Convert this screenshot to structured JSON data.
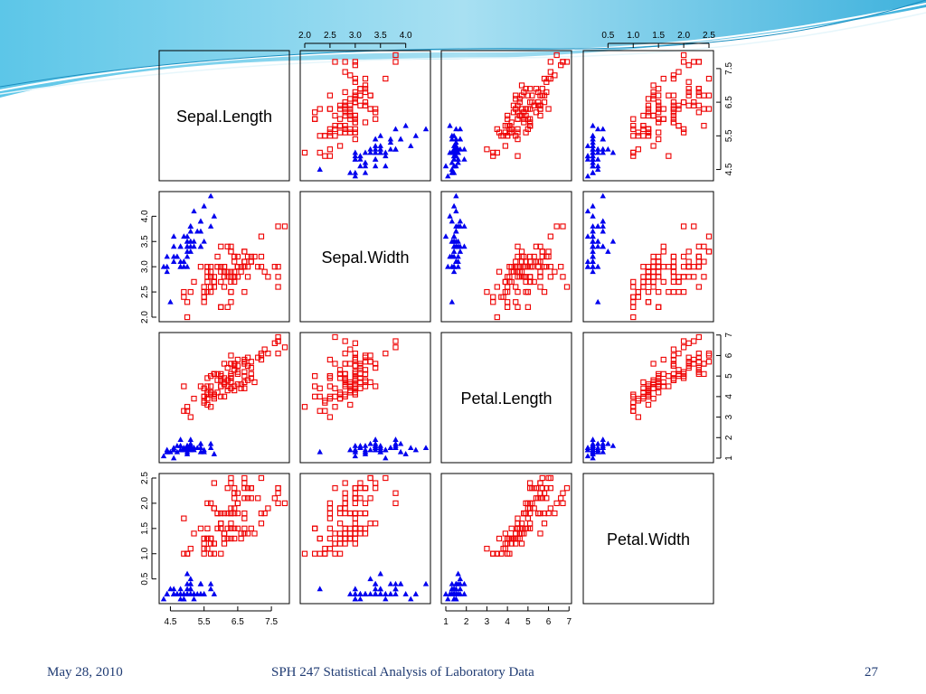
{
  "colors": {
    "setosa": "#0000ee",
    "other": "#ee0000",
    "footer": "#1f3b73",
    "accent": "#35b4dd"
  },
  "footer": {
    "date": "May 28, 2010",
    "title": "SPH 247 Statistical Analysis of Laboratory Data",
    "page": "27"
  },
  "chart_data": {
    "type": "scatter",
    "variables": [
      "Sepal.Length",
      "Sepal.Width",
      "Petal.Length",
      "Petal.Width"
    ],
    "ranges": [
      [
        4.3,
        7.9
      ],
      [
        2.0,
        4.4
      ],
      [
        1.0,
        6.9
      ],
      [
        0.1,
        2.5
      ]
    ],
    "ticks": [
      [
        "4.5",
        "5.5",
        "6.5",
        "7.5"
      ],
      [
        "2.0",
        "2.5",
        "3.0",
        "3.5",
        "4.0"
      ],
      [
        "1",
        "2",
        "3",
        "4",
        "5",
        "6",
        "7"
      ],
      [
        "0.5",
        "1.0",
        "1.5",
        "2.0",
        "2.5"
      ]
    ],
    "groups": [
      {
        "marker": "filled-triangle",
        "color": "#0000ee",
        "points": [
          [
            5.1,
            3.5,
            1.4,
            0.2
          ],
          [
            4.9,
            3.0,
            1.4,
            0.2
          ],
          [
            4.7,
            3.2,
            1.3,
            0.2
          ],
          [
            4.6,
            3.1,
            1.5,
            0.2
          ],
          [
            5.0,
            3.6,
            1.4,
            0.2
          ],
          [
            5.4,
            3.9,
            1.7,
            0.4
          ],
          [
            4.6,
            3.4,
            1.4,
            0.3
          ],
          [
            5.0,
            3.4,
            1.5,
            0.2
          ],
          [
            4.4,
            2.9,
            1.4,
            0.2
          ],
          [
            4.9,
            3.1,
            1.5,
            0.1
          ],
          [
            5.4,
            3.7,
            1.5,
            0.2
          ],
          [
            4.8,
            3.4,
            1.6,
            0.2
          ],
          [
            4.8,
            3.0,
            1.4,
            0.1
          ],
          [
            4.3,
            3.0,
            1.1,
            0.1
          ],
          [
            5.8,
            4.0,
            1.2,
            0.2
          ],
          [
            5.7,
            4.4,
            1.5,
            0.4
          ],
          [
            5.4,
            3.9,
            1.3,
            0.4
          ],
          [
            5.1,
            3.5,
            1.4,
            0.3
          ],
          [
            5.7,
            3.8,
            1.7,
            0.3
          ],
          [
            5.1,
            3.8,
            1.5,
            0.3
          ],
          [
            5.4,
            3.4,
            1.7,
            0.2
          ],
          [
            5.1,
            3.7,
            1.5,
            0.4
          ],
          [
            4.6,
            3.6,
            1.0,
            0.2
          ],
          [
            5.1,
            3.3,
            1.7,
            0.5
          ],
          [
            4.8,
            3.4,
            1.9,
            0.2
          ],
          [
            5.0,
            3.0,
            1.6,
            0.2
          ],
          [
            5.0,
            3.4,
            1.6,
            0.4
          ],
          [
            5.2,
            3.5,
            1.5,
            0.2
          ],
          [
            5.2,
            3.4,
            1.4,
            0.2
          ],
          [
            4.7,
            3.2,
            1.6,
            0.2
          ],
          [
            4.8,
            3.1,
            1.6,
            0.2
          ],
          [
            5.4,
            3.4,
            1.5,
            0.4
          ],
          [
            5.2,
            4.1,
            1.5,
            0.1
          ],
          [
            5.5,
            4.2,
            1.4,
            0.2
          ],
          [
            4.9,
            3.1,
            1.5,
            0.2
          ],
          [
            5.0,
            3.2,
            1.2,
            0.2
          ],
          [
            5.5,
            3.5,
            1.3,
            0.2
          ],
          [
            4.9,
            3.6,
            1.4,
            0.1
          ],
          [
            4.4,
            3.0,
            1.3,
            0.2
          ],
          [
            5.1,
            3.4,
            1.5,
            0.2
          ],
          [
            5.0,
            3.5,
            1.3,
            0.3
          ],
          [
            4.5,
            2.3,
            1.3,
            0.3
          ],
          [
            4.4,
            3.2,
            1.3,
            0.2
          ],
          [
            5.0,
            3.5,
            1.6,
            0.6
          ],
          [
            5.1,
            3.8,
            1.9,
            0.4
          ],
          [
            4.8,
            3.0,
            1.4,
            0.3
          ],
          [
            5.1,
            3.8,
            1.6,
            0.2
          ],
          [
            4.6,
            3.2,
            1.4,
            0.2
          ],
          [
            5.3,
            3.7,
            1.5,
            0.2
          ],
          [
            5.0,
            3.3,
            1.4,
            0.2
          ]
        ]
      },
      {
        "marker": "open-square",
        "color": "#ee0000",
        "points": [
          [
            7.0,
            3.2,
            4.7,
            1.4
          ],
          [
            6.4,
            3.2,
            4.5,
            1.5
          ],
          [
            6.9,
            3.1,
            4.9,
            1.5
          ],
          [
            5.5,
            2.3,
            4.0,
            1.3
          ],
          [
            6.5,
            2.8,
            4.6,
            1.5
          ],
          [
            5.7,
            2.8,
            4.5,
            1.3
          ],
          [
            6.3,
            3.3,
            4.7,
            1.6
          ],
          [
            4.9,
            2.4,
            3.3,
            1.0
          ],
          [
            6.6,
            2.9,
            4.6,
            1.3
          ],
          [
            5.2,
            2.7,
            3.9,
            1.4
          ],
          [
            5.0,
            2.0,
            3.5,
            1.0
          ],
          [
            5.9,
            3.0,
            4.2,
            1.5
          ],
          [
            6.0,
            2.2,
            4.0,
            1.0
          ],
          [
            6.1,
            2.9,
            4.7,
            1.4
          ],
          [
            5.6,
            2.9,
            3.6,
            1.3
          ],
          [
            6.7,
            3.1,
            4.4,
            1.4
          ],
          [
            5.6,
            3.0,
            4.5,
            1.5
          ],
          [
            5.8,
            2.7,
            4.1,
            1.0
          ],
          [
            6.2,
            2.2,
            4.5,
            1.5
          ],
          [
            5.6,
            2.5,
            3.9,
            1.1
          ],
          [
            5.9,
            3.2,
            4.8,
            1.8
          ],
          [
            6.1,
            2.8,
            4.0,
            1.3
          ],
          [
            6.3,
            2.5,
            4.9,
            1.5
          ],
          [
            6.1,
            2.8,
            4.7,
            1.2
          ],
          [
            6.4,
            2.9,
            4.3,
            1.3
          ],
          [
            6.6,
            3.0,
            4.4,
            1.4
          ],
          [
            6.8,
            2.8,
            4.8,
            1.4
          ],
          [
            6.7,
            3.0,
            5.0,
            1.7
          ],
          [
            6.0,
            2.9,
            4.5,
            1.5
          ],
          [
            5.7,
            2.6,
            3.5,
            1.0
          ],
          [
            5.5,
            2.4,
            3.8,
            1.1
          ],
          [
            5.5,
            2.4,
            3.7,
            1.0
          ],
          [
            5.8,
            2.7,
            3.9,
            1.2
          ],
          [
            6.0,
            2.7,
            5.1,
            1.6
          ],
          [
            5.4,
            3.0,
            4.5,
            1.5
          ],
          [
            6.0,
            3.4,
            4.5,
            1.6
          ],
          [
            6.7,
            3.1,
            4.7,
            1.5
          ],
          [
            6.3,
            2.3,
            4.4,
            1.3
          ],
          [
            5.6,
            3.0,
            4.1,
            1.3
          ],
          [
            5.5,
            2.5,
            4.0,
            1.3
          ],
          [
            5.5,
            2.6,
            4.4,
            1.2
          ],
          [
            6.1,
            3.0,
            4.6,
            1.4
          ],
          [
            5.8,
            2.6,
            4.0,
            1.2
          ],
          [
            5.0,
            2.3,
            3.3,
            1.0
          ],
          [
            5.6,
            2.7,
            4.2,
            1.3
          ],
          [
            5.7,
            3.0,
            4.2,
            1.2
          ],
          [
            5.7,
            2.9,
            4.2,
            1.3
          ],
          [
            6.2,
            2.9,
            4.3,
            1.3
          ],
          [
            5.1,
            2.5,
            3.0,
            1.1
          ],
          [
            5.7,
            2.8,
            4.1,
            1.3
          ],
          [
            6.3,
            3.3,
            6.0,
            2.5
          ],
          [
            5.8,
            2.7,
            5.1,
            1.9
          ],
          [
            7.1,
            3.0,
            5.9,
            2.1
          ],
          [
            6.3,
            2.9,
            5.6,
            1.8
          ],
          [
            6.5,
            3.0,
            5.8,
            2.2
          ],
          [
            7.6,
            3.0,
            6.6,
            2.1
          ],
          [
            4.9,
            2.5,
            4.5,
            1.7
          ],
          [
            7.3,
            2.9,
            6.3,
            1.8
          ],
          [
            6.7,
            2.5,
            5.8,
            1.8
          ],
          [
            7.2,
            3.6,
            6.1,
            2.5
          ],
          [
            6.5,
            3.2,
            5.1,
            2.0
          ],
          [
            6.4,
            2.7,
            5.3,
            1.9
          ],
          [
            6.8,
            3.0,
            5.5,
            2.1
          ],
          [
            5.7,
            2.5,
            5.0,
            2.0
          ],
          [
            5.8,
            2.8,
            5.1,
            2.4
          ],
          [
            6.4,
            3.2,
            5.3,
            2.3
          ],
          [
            6.5,
            3.0,
            5.5,
            1.8
          ],
          [
            7.7,
            3.8,
            6.7,
            2.2
          ],
          [
            7.7,
            2.6,
            6.9,
            2.3
          ],
          [
            6.0,
            2.2,
            5.0,
            1.5
          ],
          [
            6.9,
            3.2,
            5.7,
            2.3
          ],
          [
            5.6,
            2.8,
            4.9,
            2.0
          ],
          [
            7.7,
            2.8,
            6.7,
            2.0
          ],
          [
            6.3,
            2.7,
            4.9,
            1.8
          ],
          [
            6.7,
            3.3,
            5.7,
            2.1
          ],
          [
            7.2,
            3.2,
            6.0,
            1.8
          ],
          [
            6.2,
            2.8,
            4.8,
            1.8
          ],
          [
            6.1,
            3.0,
            4.9,
            1.8
          ],
          [
            6.4,
            2.8,
            5.6,
            2.1
          ],
          [
            7.2,
            3.0,
            5.8,
            1.6
          ],
          [
            7.4,
            2.8,
            6.1,
            1.9
          ],
          [
            7.9,
            3.8,
            6.4,
            2.0
          ],
          [
            6.4,
            2.8,
            5.6,
            2.2
          ],
          [
            6.3,
            2.8,
            5.1,
            1.5
          ],
          [
            6.1,
            2.6,
            5.6,
            1.4
          ],
          [
            7.7,
            3.0,
            6.1,
            2.3
          ],
          [
            6.3,
            3.4,
            5.6,
            2.4
          ],
          [
            6.4,
            3.1,
            5.5,
            1.8
          ],
          [
            6.0,
            3.0,
            4.8,
            1.8
          ],
          [
            6.9,
            3.1,
            5.4,
            2.1
          ],
          [
            6.7,
            3.1,
            5.6,
            2.4
          ],
          [
            6.9,
            3.1,
            5.1,
            2.3
          ],
          [
            5.8,
            2.7,
            5.1,
            1.9
          ],
          [
            6.8,
            3.2,
            5.9,
            2.3
          ],
          [
            6.7,
            3.3,
            5.7,
            2.5
          ],
          [
            6.7,
            3.0,
            5.2,
            2.3
          ],
          [
            6.3,
            2.5,
            5.0,
            1.9
          ],
          [
            6.5,
            3.0,
            5.2,
            2.0
          ],
          [
            6.2,
            3.4,
            5.4,
            2.3
          ],
          [
            5.9,
            3.0,
            5.1,
            1.8
          ]
        ]
      }
    ]
  }
}
